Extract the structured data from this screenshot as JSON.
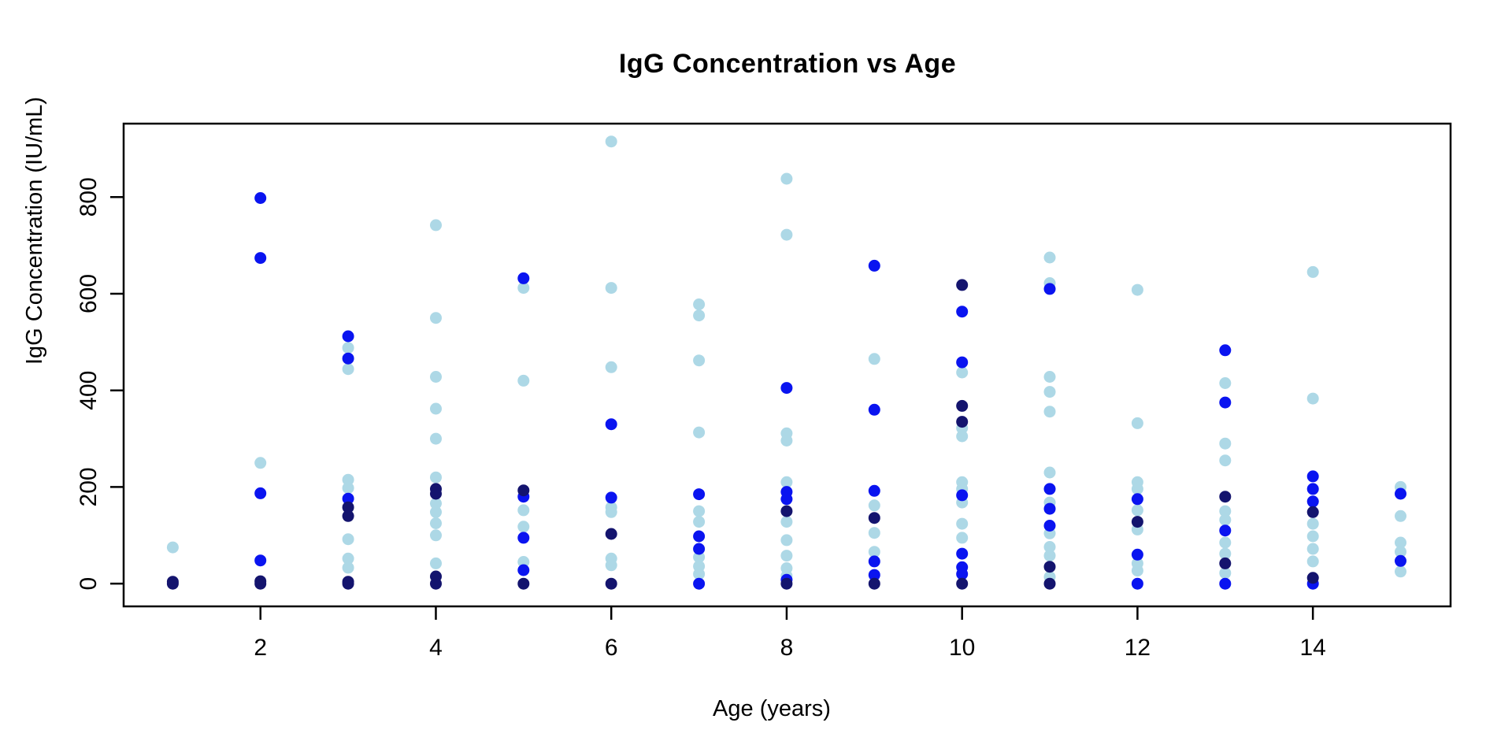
{
  "title": "IgG Concentration vs Age",
  "chart_data": {
    "type": "scatter",
    "title": "IgG Concentration vs Age",
    "xlabel": "Age (years)",
    "ylabel": "IgG Concentration (IU/mL)",
    "xlim": [
      0.44,
      15.57
    ],
    "ylim": [
      -47,
      952
    ],
    "xticks": [
      2,
      4,
      6,
      8,
      10,
      12,
      14
    ],
    "yticks": [
      0,
      200,
      400,
      600,
      800
    ],
    "grid": false,
    "legend": "none",
    "frame": true,
    "axis_color": "#000000",
    "series": [
      {
        "name": "light-blue-points",
        "color": "#ADD8E6",
        "points": [
          [
            1,
            75
          ],
          [
            2,
            250
          ],
          [
            3,
            488
          ],
          [
            3,
            444
          ],
          [
            3,
            215
          ],
          [
            3,
            198
          ],
          [
            3,
            92
          ],
          [
            3,
            52
          ],
          [
            3,
            33
          ],
          [
            4,
            742
          ],
          [
            4,
            550
          ],
          [
            4,
            428
          ],
          [
            4,
            362
          ],
          [
            4,
            300
          ],
          [
            4,
            220
          ],
          [
            4,
            166
          ],
          [
            4,
            148
          ],
          [
            4,
            125
          ],
          [
            4,
            100
          ],
          [
            4,
            42
          ],
          [
            5,
            612
          ],
          [
            5,
            420
          ],
          [
            5,
            152
          ],
          [
            5,
            118
          ],
          [
            5,
            45
          ],
          [
            6,
            915
          ],
          [
            6,
            612
          ],
          [
            6,
            448
          ],
          [
            6,
            158
          ],
          [
            6,
            148
          ],
          [
            6,
            52
          ],
          [
            6,
            38
          ],
          [
            7,
            578
          ],
          [
            7,
            555
          ],
          [
            7,
            462
          ],
          [
            7,
            313
          ],
          [
            7,
            150
          ],
          [
            7,
            128
          ],
          [
            7,
            55
          ],
          [
            7,
            36
          ],
          [
            7,
            20
          ],
          [
            8,
            838
          ],
          [
            8,
            722
          ],
          [
            8,
            311
          ],
          [
            8,
            296
          ],
          [
            8,
            210
          ],
          [
            8,
            128
          ],
          [
            8,
            90
          ],
          [
            8,
            58
          ],
          [
            8,
            32
          ],
          [
            8,
            16
          ],
          [
            9,
            465
          ],
          [
            9,
            162
          ],
          [
            9,
            105
          ],
          [
            9,
            66
          ],
          [
            10,
            437
          ],
          [
            10,
            322
          ],
          [
            10,
            305
          ],
          [
            10,
            210
          ],
          [
            10,
            196
          ],
          [
            10,
            168
          ],
          [
            10,
            124
          ],
          [
            10,
            95
          ],
          [
            11,
            675
          ],
          [
            11,
            622
          ],
          [
            11,
            428
          ],
          [
            11,
            397
          ],
          [
            11,
            356
          ],
          [
            11,
            230
          ],
          [
            11,
            168
          ],
          [
            11,
            104
          ],
          [
            11,
            76
          ],
          [
            11,
            58
          ],
          [
            11,
            14
          ],
          [
            12,
            608
          ],
          [
            12,
            332
          ],
          [
            12,
            210
          ],
          [
            12,
            196
          ],
          [
            12,
            152
          ],
          [
            12,
            112
          ],
          [
            12,
            42
          ],
          [
            12,
            27
          ],
          [
            13,
            415
          ],
          [
            13,
            290
          ],
          [
            13,
            255
          ],
          [
            13,
            150
          ],
          [
            13,
            132
          ],
          [
            13,
            85
          ],
          [
            13,
            62
          ],
          [
            13,
            22
          ],
          [
            14,
            645
          ],
          [
            14,
            383
          ],
          [
            14,
            124
          ],
          [
            14,
            98
          ],
          [
            14,
            72
          ],
          [
            14,
            46
          ],
          [
            15,
            200
          ],
          [
            15,
            140
          ],
          [
            15,
            85
          ],
          [
            15,
            66
          ],
          [
            15,
            25
          ]
        ]
      },
      {
        "name": "blue-points",
        "color": "#0A14F0",
        "points": [
          [
            2,
            798
          ],
          [
            2,
            674
          ],
          [
            2,
            187
          ],
          [
            2,
            48
          ],
          [
            3,
            512
          ],
          [
            3,
            466
          ],
          [
            3,
            176
          ],
          [
            5,
            632
          ],
          [
            5,
            180
          ],
          [
            5,
            95
          ],
          [
            5,
            28
          ],
          [
            6,
            330
          ],
          [
            6,
            178
          ],
          [
            7,
            185
          ],
          [
            7,
            98
          ],
          [
            7,
            72
          ],
          [
            7,
            0
          ],
          [
            8,
            405
          ],
          [
            8,
            190
          ],
          [
            8,
            175
          ],
          [
            8,
            8
          ],
          [
            9,
            658
          ],
          [
            9,
            360
          ],
          [
            9,
            192
          ],
          [
            9,
            46
          ],
          [
            9,
            18
          ],
          [
            10,
            563
          ],
          [
            10,
            458
          ],
          [
            10,
            183
          ],
          [
            10,
            62
          ],
          [
            10,
            34
          ],
          [
            10,
            20
          ],
          [
            11,
            610
          ],
          [
            11,
            196
          ],
          [
            11,
            155
          ],
          [
            11,
            120
          ],
          [
            12,
            175
          ],
          [
            12,
            60
          ],
          [
            12,
            0
          ],
          [
            13,
            483
          ],
          [
            13,
            375
          ],
          [
            13,
            110
          ],
          [
            13,
            0
          ],
          [
            14,
            222
          ],
          [
            14,
            196
          ],
          [
            14,
            170
          ],
          [
            14,
            0
          ],
          [
            15,
            186
          ],
          [
            15,
            47
          ]
        ]
      },
      {
        "name": "navy-points",
        "color": "#14146E",
        "points": [
          [
            1,
            0
          ],
          [
            1,
            4
          ],
          [
            2,
            0
          ],
          [
            2,
            5
          ],
          [
            3,
            158
          ],
          [
            3,
            140
          ],
          [
            3,
            4
          ],
          [
            3,
            0
          ],
          [
            4,
            196
          ],
          [
            4,
            186
          ],
          [
            4,
            15
          ],
          [
            4,
            0
          ],
          [
            5,
            193
          ],
          [
            5,
            0
          ],
          [
            6,
            103
          ],
          [
            6,
            0
          ],
          [
            8,
            150
          ],
          [
            8,
            0
          ],
          [
            9,
            136
          ],
          [
            9,
            0
          ],
          [
            10,
            618
          ],
          [
            10,
            368
          ],
          [
            10,
            335
          ],
          [
            10,
            0
          ],
          [
            11,
            35
          ],
          [
            11,
            0
          ],
          [
            12,
            128
          ],
          [
            13,
            180
          ],
          [
            13,
            42
          ],
          [
            14,
            148
          ],
          [
            14,
            12
          ]
        ]
      }
    ]
  }
}
